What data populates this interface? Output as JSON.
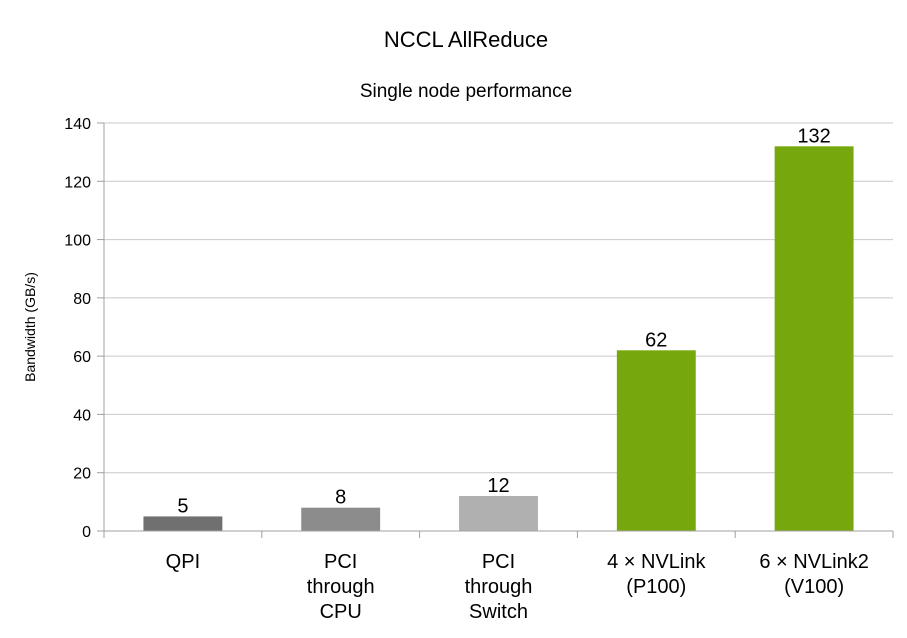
{
  "chart_data": {
    "type": "bar",
    "title": "NCCL AllReduce",
    "subtitle": "Single node performance",
    "xlabel": "",
    "ylabel": "Bandwidth (GB/s)",
    "ylim": [
      0,
      140
    ],
    "yticks": [
      0,
      20,
      40,
      60,
      80,
      100,
      120,
      140
    ],
    "grid": true,
    "legend": "none",
    "categories": [
      [
        "QPI"
      ],
      [
        "PCI",
        "through",
        "CPU"
      ],
      [
        "PCI",
        "through",
        "Switch"
      ],
      [
        "4 × NVLink",
        "(P100)"
      ],
      [
        "6 × NVLink2",
        "(V100)"
      ]
    ],
    "values": [
      5,
      8,
      12,
      62,
      132
    ],
    "data_labels": [
      "5",
      "8",
      "12",
      "62",
      "132"
    ],
    "colors": [
      "#707070",
      "#8c8c8c",
      "#b0b0b0",
      "#76a80d",
      "#76a80d"
    ],
    "gridline_color": "#c8c8c8",
    "axis_color": "#a0a0a0"
  }
}
